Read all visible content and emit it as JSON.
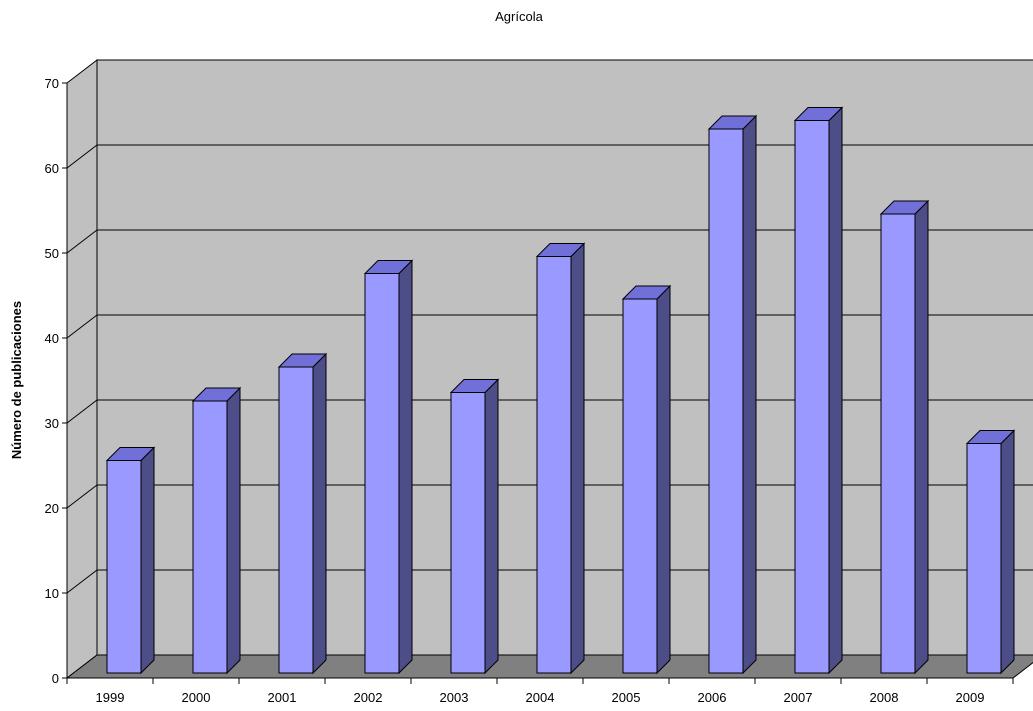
{
  "chart_data": {
    "type": "bar",
    "title": "Agrícola",
    "xlabel": "",
    "ylabel": "Número de publicaciones",
    "categories": [
      "1999",
      "2000",
      "2001",
      "2002",
      "2003",
      "2004",
      "2005",
      "2006",
      "2007",
      "2008",
      "2009"
    ],
    "values": [
      25,
      32,
      36,
      47,
      33,
      49,
      44,
      64,
      65,
      54,
      27
    ],
    "ylim": [
      0,
      70
    ],
    "yticks": [
      "0",
      "10",
      "20",
      "30",
      "40",
      "50",
      "60",
      "70"
    ],
    "grid": true,
    "legend": "none",
    "colors": {
      "bar_front": "#9999ff",
      "bar_top": "#7070d8",
      "bar_side": "#4d4d88",
      "wall": "#c0c0c0",
      "floor": "#808080"
    }
  }
}
